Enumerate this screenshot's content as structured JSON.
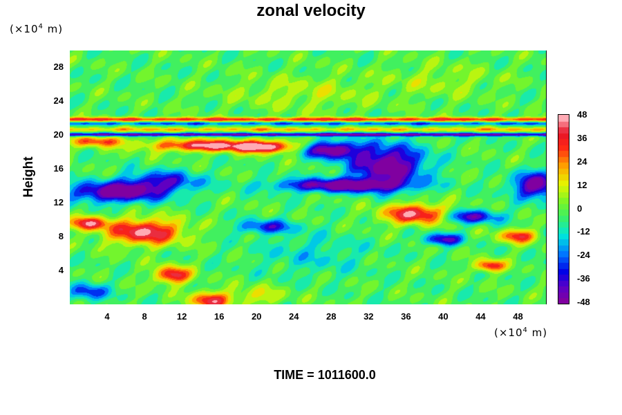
{
  "chart_data": {
    "type": "heatmap",
    "title": "zonal velocity",
    "ylabel": "Height",
    "y_unit": "(×10",
    "x_unit": "(×10",
    "unit_exp": "4",
    "unit_tail": " m)",
    "xlim": [
      0,
      51
    ],
    "ylim": [
      0,
      30
    ],
    "x_ticks": [
      "4",
      "8",
      "12",
      "16",
      "20",
      "24",
      "28",
      "32",
      "36",
      "40",
      "44",
      "48"
    ],
    "y_ticks": [
      "4",
      "8",
      "12",
      "16",
      "20",
      "24",
      "28"
    ],
    "colorbar": {
      "min": -48,
      "max": 48,
      "tick_labels": [
        "48",
        "36",
        "24",
        "12",
        "0",
        "-12",
        "-24",
        "-36",
        "-48"
      ]
    },
    "features": [
      {
        "x": 15,
        "y": 18.8,
        "sx": 6.5,
        "sy": 0.7,
        "value": 46
      },
      {
        "x": 3,
        "y": 19.3,
        "sx": 3,
        "sy": 0.6,
        "value": 32
      },
      {
        "x": 21,
        "y": 18.6,
        "sx": 3,
        "sy": 0.7,
        "value": 38
      },
      {
        "x": 5,
        "y": 13.3,
        "sx": 5,
        "sy": 1.2,
        "value": -48
      },
      {
        "x": 29,
        "y": 14.1,
        "sx": 7,
        "sy": 0.8,
        "value": -46
      },
      {
        "x": 34,
        "y": 16.5,
        "sx": 4,
        "sy": 2.4,
        "value": -48
      },
      {
        "x": 28,
        "y": 18.3,
        "sx": 3,
        "sy": 1.0,
        "value": -46
      },
      {
        "x": 50,
        "y": 14.1,
        "sx": 2.5,
        "sy": 1.5,
        "value": -46
      },
      {
        "x": 8,
        "y": 8.6,
        "sx": 4,
        "sy": 1.5,
        "value": 46
      },
      {
        "x": 2,
        "y": 9.6,
        "sx": 2,
        "sy": 0.8,
        "value": 40
      },
      {
        "x": 11,
        "y": 3.5,
        "sx": 1.8,
        "sy": 1.0,
        "value": 44
      },
      {
        "x": 15,
        "y": 0.5,
        "sx": 2,
        "sy": 1.0,
        "value": 40
      },
      {
        "x": 37,
        "y": 10.7,
        "sx": 3.5,
        "sy": 1.2,
        "value": 44
      },
      {
        "x": 45,
        "y": 4.6,
        "sx": 1.5,
        "sy": 0.7,
        "value": 40
      },
      {
        "x": 48,
        "y": 8.1,
        "sx": 2,
        "sy": 0.8,
        "value": 36
      },
      {
        "x": 40,
        "y": 7.7,
        "sx": 2,
        "sy": 0.7,
        "value": -36
      },
      {
        "x": 10,
        "y": 14.6,
        "sx": 4,
        "sy": 1.2,
        "value": -30
      },
      {
        "x": 43,
        "y": 10.4,
        "sx": 3,
        "sy": 0.8,
        "value": -36
      },
      {
        "x": 21,
        "y": 9.2,
        "sx": 3,
        "sy": 0.8,
        "value": -28
      },
      {
        "x": 2,
        "y": 1.5,
        "sx": 2,
        "sy": 1.0,
        "value": -28
      },
      {
        "x": 25,
        "y": 25.0,
        "sx": 8,
        "sy": 2.0,
        "value": 10
      },
      {
        "x": 40,
        "y": 26.5,
        "sx": 6,
        "sy": 2.0,
        "value": 8
      },
      {
        "x": 26,
        "y": 6.0,
        "sx": 6,
        "sy": 2.5,
        "value": -10
      },
      {
        "x": 20,
        "y": 1.0,
        "sx": 3,
        "sy": 1.2,
        "value": 14
      }
    ],
    "bands": [
      {
        "y": 21.9,
        "s": 0.25,
        "value": 34
      },
      {
        "y": 21.4,
        "s": 0.2,
        "value": -22
      },
      {
        "y": 20.1,
        "s": 0.2,
        "value": -40
      },
      {
        "y": 20.7,
        "s": 0.25,
        "value": 20
      }
    ]
  },
  "footer": {
    "time_label": "TIME = 1011600.0"
  }
}
